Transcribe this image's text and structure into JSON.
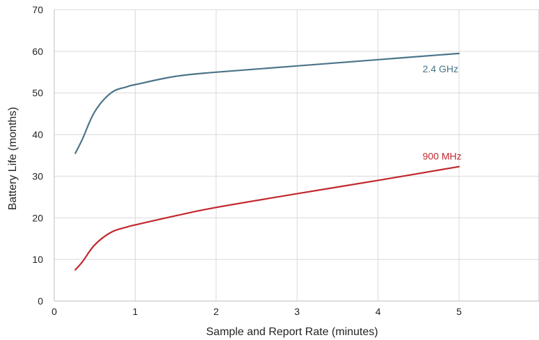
{
  "chart_data": {
    "type": "line",
    "title": "",
    "xlabel": "Sample and Report Rate (minutes)",
    "ylabel": "Battery Life (months)",
    "xlim": [
      0,
      6
    ],
    "ylim": [
      0,
      70
    ],
    "xticks": [
      0,
      1,
      2,
      3,
      4,
      5
    ],
    "yticks": [
      0,
      10,
      20,
      30,
      40,
      50,
      60,
      70
    ],
    "grid": true,
    "legend": "inline labels near line ends",
    "series": [
      {
        "name": "2.4 GHz",
        "color": "#4a7488",
        "x": [
          0.26,
          0.35,
          0.5,
          0.7,
          0.9,
          1.0,
          1.5,
          2.0,
          3.0,
          4.0,
          5.0
        ],
        "y": [
          35.5,
          39.0,
          45.5,
          50.0,
          51.5,
          52.0,
          54.0,
          55.0,
          56.5,
          58.0,
          59.5
        ]
      },
      {
        "name": "900 MHz",
        "color": "#c1272d",
        "x": [
          0.26,
          0.35,
          0.5,
          0.7,
          0.9,
          1.0,
          1.5,
          2.0,
          3.0,
          4.0,
          5.0
        ],
        "y": [
          7.5,
          9.5,
          13.5,
          16.5,
          17.8,
          18.3,
          20.5,
          22.5,
          25.8,
          29.0,
          32.3
        ]
      }
    ],
    "annotations": [
      {
        "text": "2.4 GHz",
        "x": 4.55,
        "y": 55.0,
        "color": "#4a7488"
      },
      {
        "text": "900 MHz",
        "x": 4.55,
        "y": 34.0,
        "color": "#c1272d"
      }
    ]
  }
}
